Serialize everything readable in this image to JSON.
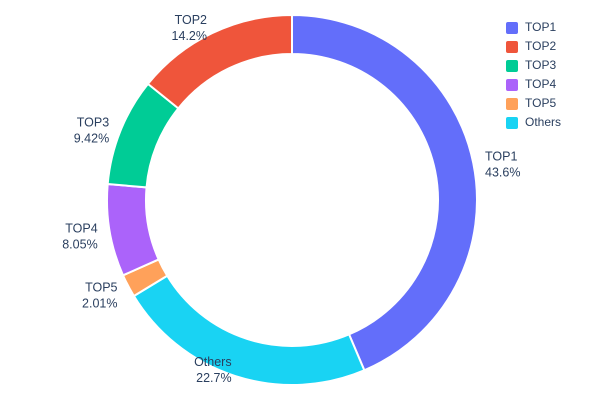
{
  "chart_data": {
    "type": "pie",
    "title": "",
    "hole": 0.79,
    "direction": "clockwise",
    "start_angle_deg": 0,
    "background": "#ffffff",
    "text_color": "#2a3f5f",
    "slices": [
      {
        "label": "TOP1",
        "value": 43.6,
        "pct_label": "43.6%",
        "color": "#636EFA"
      },
      {
        "label": "Others",
        "value": 22.7,
        "pct_label": "22.7%",
        "color": "#19D3F3"
      },
      {
        "label": "TOP5",
        "value": 2.01,
        "pct_label": "2.01%",
        "color": "#FFA15A"
      },
      {
        "label": "TOP4",
        "value": 8.05,
        "pct_label": "8.05%",
        "color": "#AB63FA"
      },
      {
        "label": "TOP3",
        "value": 9.42,
        "pct_label": "9.42%",
        "color": "#00CC96"
      },
      {
        "label": "TOP2",
        "value": 14.2,
        "pct_label": "14.2%",
        "color": "#EF553B"
      }
    ],
    "legend": [
      {
        "label": "TOP1",
        "color": "#636EFA"
      },
      {
        "label": "TOP2",
        "color": "#EF553B"
      },
      {
        "label": "TOP3",
        "color": "#00CC96"
      },
      {
        "label": "TOP4",
        "color": "#AB63FA"
      },
      {
        "label": "TOP5",
        "color": "#FFA15A"
      },
      {
        "label": "Others",
        "color": "#19D3F3"
      }
    ],
    "legend_position": "top-right",
    "labels_position": "outside"
  }
}
